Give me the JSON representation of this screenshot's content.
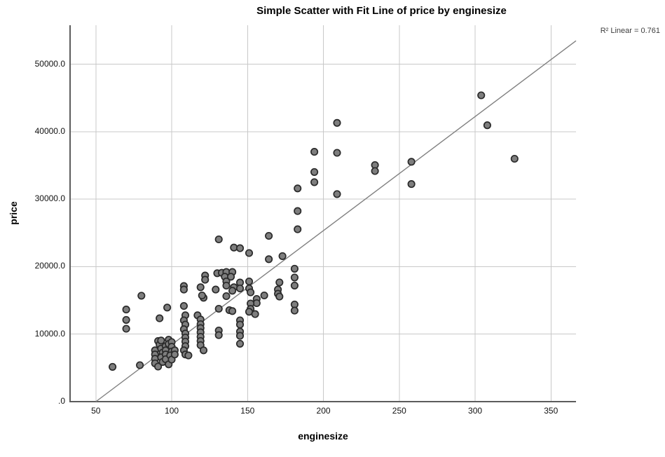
{
  "r2_annotation": "R² Linear = 0.761",
  "chart_data": {
    "type": "scatter",
    "title": "Simple Scatter with Fit Line of price by enginesize",
    "xlabel": "enginesize",
    "ylabel": "price",
    "x_ticks": [
      50,
      100,
      150,
      200,
      250,
      300,
      350
    ],
    "y_ticks": [
      {
        "value": 0,
        "label": ".0"
      },
      {
        "value": 10000,
        "label": "10000.0"
      },
      {
        "value": 20000,
        "label": "20000.0"
      },
      {
        "value": 30000,
        "label": "30000.0"
      },
      {
        "value": 40000,
        "label": "40000.0"
      },
      {
        "value": 50000,
        "label": "50000.0"
      }
    ],
    "xlim": [
      33,
      366.5
    ],
    "ylim": [
      0,
      55790
    ],
    "grid": true,
    "legend": "none",
    "r_squared": 0.761,
    "fit_line": {
      "x1": 50,
      "y1": 0,
      "x2": 366.5,
      "y2": 53488
    },
    "points": [
      [
        61,
        5150
      ],
      [
        79,
        5400
      ],
      [
        70,
        13650
      ],
      [
        70,
        12110
      ],
      [
        70,
        10800
      ],
      [
        80,
        15700
      ],
      [
        97,
        13940
      ],
      [
        92,
        12350
      ],
      [
        91,
        8990
      ],
      [
        92,
        8470
      ],
      [
        89,
        7610
      ],
      [
        89,
        6990
      ],
      [
        89,
        6360
      ],
      [
        89,
        5670
      ],
      [
        91,
        5190
      ],
      [
        93,
        9060
      ],
      [
        93,
        7850
      ],
      [
        94,
        7270
      ],
      [
        93,
        6570
      ],
      [
        94,
        5880
      ],
      [
        96,
        8230
      ],
      [
        96,
        7610
      ],
      [
        96,
        6990
      ],
      [
        96,
        6290
      ],
      [
        98,
        5530
      ],
      [
        98,
        9170
      ],
      [
        98,
        8550
      ],
      [
        100,
        8830
      ],
      [
        100,
        8130
      ],
      [
        100,
        7430
      ],
      [
        99,
        6850
      ],
      [
        100,
        6230
      ],
      [
        102,
        7610
      ],
      [
        102,
        6990
      ],
      [
        108,
        14180
      ],
      [
        109,
        12800
      ],
      [
        108,
        12040
      ],
      [
        109,
        11420
      ],
      [
        108,
        10730
      ],
      [
        109,
        10100
      ],
      [
        109,
        9510
      ],
      [
        109,
        8890
      ],
      [
        109,
        8230
      ],
      [
        108,
        7610
      ],
      [
        109,
        6990
      ],
      [
        111,
        6850
      ],
      [
        117,
        12800
      ],
      [
        119,
        12180
      ],
      [
        119,
        11480
      ],
      [
        119,
        10900
      ],
      [
        119,
        10280
      ],
      [
        119,
        9610
      ],
      [
        119,
        8990
      ],
      [
        119,
        8370
      ],
      [
        121,
        7610
      ],
      [
        131,
        13770
      ],
      [
        131,
        10550
      ],
      [
        131,
        9860
      ],
      [
        138,
        13560
      ],
      [
        140,
        13420
      ],
      [
        145,
        12040
      ],
      [
        145,
        11420
      ],
      [
        145,
        10380
      ],
      [
        145,
        9760
      ],
      [
        145,
        8580
      ],
      [
        136,
        15640
      ],
      [
        121,
        15400
      ],
      [
        120,
        15740
      ],
      [
        131,
        24050
      ],
      [
        141,
        22840
      ],
      [
        145,
        22740
      ],
      [
        122,
        18690
      ],
      [
        122,
        18070
      ],
      [
        130,
        19030
      ],
      [
        133,
        19100
      ],
      [
        136,
        19210
      ],
      [
        135,
        18510
      ],
      [
        136,
        17820
      ],
      [
        136,
        17190
      ],
      [
        140,
        19210
      ],
      [
        139,
        18510
      ],
      [
        141,
        16960
      ],
      [
        140,
        16440
      ],
      [
        145,
        17650
      ],
      [
        108,
        17130
      ],
      [
        108,
        16610
      ],
      [
        119,
        16960
      ],
      [
        129,
        16610
      ],
      [
        151,
        17820
      ],
      [
        151,
        16780
      ],
      [
        152,
        16200
      ],
      [
        145,
        16780
      ],
      [
        156,
        15220
      ],
      [
        156,
        14600
      ],
      [
        161,
        15740
      ],
      [
        170,
        16610
      ],
      [
        170,
        15990
      ],
      [
        171,
        15570
      ],
      [
        171,
        17670
      ],
      [
        152,
        14540
      ],
      [
        152,
        13740
      ],
      [
        151,
        13320
      ],
      [
        155,
        12980
      ],
      [
        181,
        19700
      ],
      [
        181,
        18400
      ],
      [
        181,
        17200
      ],
      [
        181,
        14400
      ],
      [
        181,
        13500
      ],
      [
        164,
        24570
      ],
      [
        164,
        21110
      ],
      [
        173,
        21570
      ],
      [
        151,
        22020
      ],
      [
        183,
        31600
      ],
      [
        183,
        28250
      ],
      [
        183,
        25550
      ],
      [
        194,
        37030
      ],
      [
        194,
        34030
      ],
      [
        194,
        32530
      ],
      [
        209,
        41320
      ],
      [
        209,
        36880
      ],
      [
        209,
        30760
      ],
      [
        234,
        35060
      ],
      [
        234,
        34180
      ],
      [
        258,
        35550
      ],
      [
        258,
        32250
      ],
      [
        304,
        45400
      ],
      [
        308,
        40960
      ],
      [
        326,
        36000
      ]
    ]
  },
  "styles": {
    "point_fill": "#7e7e7e",
    "point_stroke": "#2a2a2a",
    "grid_color": "#c8c8c8",
    "axis_color": "#5c5c5c",
    "fit_line_color": "#808080",
    "background": "#ffffff"
  }
}
